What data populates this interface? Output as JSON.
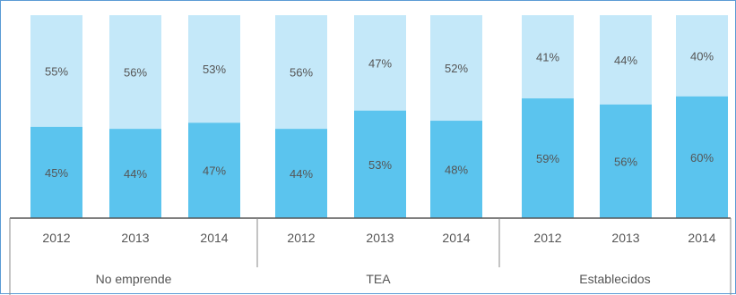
{
  "chart_data": {
    "type": "bar",
    "stacked": true,
    "percent_stacked": true,
    "groups": [
      {
        "name": "No emprende",
        "years": [
          "2012",
          "2013",
          "2014"
        ],
        "bottom": [
          45,
          44,
          47
        ],
        "top": [
          55,
          56,
          53
        ],
        "bottom_labels": [
          "45%",
          "44%",
          "47%"
        ],
        "top_labels": [
          "55%",
          "56%",
          "53%"
        ]
      },
      {
        "name": "TEA",
        "years": [
          "2012",
          "2013",
          "2014"
        ],
        "bottom": [
          44,
          53,
          48
        ],
        "top": [
          56,
          47,
          52
        ],
        "bottom_labels": [
          "44%",
          "53%",
          "48%"
        ],
        "top_labels": [
          "56%",
          "47%",
          "52%"
        ]
      },
      {
        "name": "Establecidos",
        "years": [
          "2012",
          "2013",
          "2014"
        ],
        "bottom": [
          59,
          56,
          60
        ],
        "top": [
          41,
          44,
          40
        ],
        "bottom_labels": [
          "59%",
          "56%",
          "60%"
        ],
        "top_labels": [
          "41%",
          "44%",
          "40%"
        ]
      }
    ],
    "ylim": [
      0,
      100
    ],
    "colors": {
      "bottom": "#5bc4ee",
      "top": "#c4e8f9",
      "axis": "#555555",
      "frame": "#5b9bd5"
    }
  }
}
